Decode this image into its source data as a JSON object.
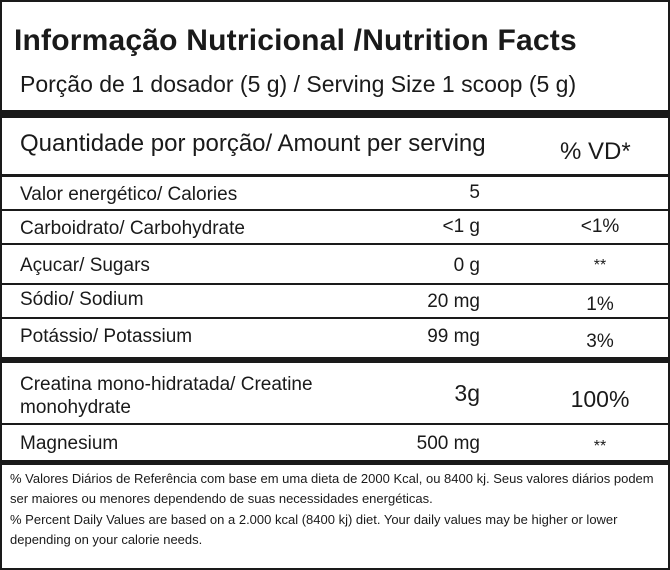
{
  "title": "Informação Nutricional /Nutrition Facts",
  "serving": "Porção de 1 dosador (5 g) / Serving Size 1 scoop (5 g)",
  "header": {
    "amount": "Quantidade por porção/ Amount per serving",
    "dv": "% VD*"
  },
  "rows": [
    {
      "name": "Valor energético/ Calories",
      "amount": "5",
      "dv": ""
    },
    {
      "name": "Carboidrato/ Carbohydrate",
      "amount": "<1 g",
      "dv": "<1%"
    },
    {
      "name": "Açucar/ Sugars",
      "amount": "0 g",
      "dv": "**"
    },
    {
      "name": "Sódio/ Sodium",
      "amount": "20 mg",
      "dv": "1%"
    },
    {
      "name": "Potássio/ Potassium",
      "amount": "99 mg",
      "dv": "3%"
    }
  ],
  "extra_rows": [
    {
      "name_line1": "Creatina mono-hidratada/ Creatine",
      "name_line2": "monohydrate",
      "amount": "3g",
      "dv": "100%"
    },
    {
      "name": "Magnesium",
      "amount": "500 mg",
      "dv": "**"
    }
  ],
  "footnotes": {
    "pt": "% Valores Diários de Referência com base em uma dieta de 2000 Kcal, ou 8400 kj. Seus valores diários podem ser maiores ou menores dependendo de suas necessidades energéticas.",
    "en": "% Percent Daily Values are based on a 2.000 kcal (8400 kj) diet. Your daily values may be higher or lower depending on your calorie needs."
  }
}
